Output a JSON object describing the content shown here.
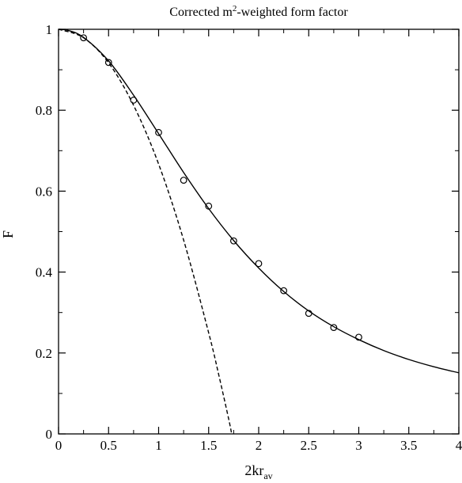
{
  "chart_data": {
    "type": "line",
    "title": {
      "prefix": "Corrected m",
      "superscript": "2",
      "suffix": "-weighted form factor"
    },
    "xlabel": {
      "base": "2kr",
      "subscript": "av"
    },
    "ylabel": "F",
    "xlim": [
      0,
      4
    ],
    "ylim": [
      0,
      1
    ],
    "x_ticks": [
      "0",
      "0.5",
      "1",
      "1.5",
      "2",
      "2.5",
      "3",
      "3.5",
      "4"
    ],
    "y_ticks": [
      "0",
      "0.2",
      "0.4",
      "0.6",
      "0.8",
      "1"
    ],
    "grid": false,
    "series": [
      {
        "style": "solid",
        "x": [
          0.0,
          0.1,
          0.25,
          0.5,
          0.75,
          1.0,
          1.25,
          1.5,
          1.75,
          2.0,
          2.25,
          2.5,
          2.75,
          3.0,
          3.25,
          3.5,
          3.75,
          4.0
        ],
        "y": [
          1.0,
          0.997,
          0.98,
          0.922,
          0.837,
          0.742,
          0.646,
          0.557,
          0.478,
          0.41,
          0.352,
          0.304,
          0.265,
          0.233,
          0.206,
          0.184,
          0.166,
          0.151
        ]
      },
      {
        "style": "dashed",
        "x": [
          0.0,
          0.25,
          0.5,
          0.75,
          1.0,
          1.25,
          1.5,
          1.6,
          1.7,
          1.73
        ],
        "y": [
          1.0,
          0.979,
          0.917,
          0.812,
          0.667,
          0.479,
          0.25,
          0.147,
          0.037,
          0.0
        ]
      },
      {
        "style": "markers",
        "x": [
          0.25,
          0.5,
          0.75,
          1.0,
          1.25,
          1.5,
          1.75,
          2.0,
          2.25,
          2.5,
          2.75,
          3.0
        ],
        "y": [
          0.979,
          0.918,
          0.825,
          0.745,
          0.627,
          0.563,
          0.477,
          0.421,
          0.354,
          0.298,
          0.263,
          0.239
        ]
      }
    ]
  }
}
